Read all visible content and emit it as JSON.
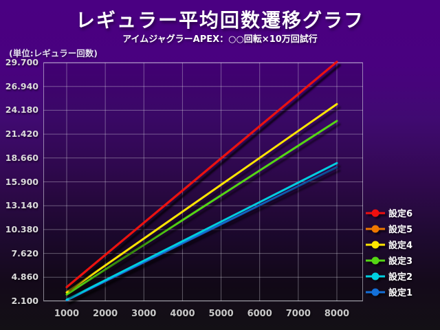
{
  "title": "レギュラー平均回数遷移グラフ",
  "subtitle": "アイムジャグラーAPEX：○○回転×10万回試行",
  "unit_label": "(単位:レギュラー回数)",
  "colors": {
    "background_top": "#4a0082",
    "background_bottom": "#131015",
    "grid": "rgba(225,225,235,0.38)",
    "plot_border": "rgba(235,235,245,0.55)",
    "text_primary": "#ffffff",
    "text_ticks": "#d0d0d0"
  },
  "chart_data": {
    "type": "line",
    "title": "レギュラー平均回数遷移グラフ",
    "subtitle": "アイムジャグラーAPEX：○○回転×10万回試行",
    "ylabel": "(単位:レギュラー回数)",
    "xlabel": "",
    "grid": true,
    "legend_position": "right",
    "x": [
      1000,
      2000,
      3000,
      4000,
      5000,
      6000,
      7000,
      8000
    ],
    "xticks": [
      "1000",
      "2000",
      "3000",
      "4000",
      "5000",
      "6000",
      "7000",
      "8000"
    ],
    "yticks": [
      "29.700",
      "26.940",
      "24.180",
      "21.420",
      "18.660",
      "15.900",
      "13.140",
      "10.380",
      "7.620",
      "4.860",
      "2.100"
    ],
    "ylim": [
      2.1,
      29.7
    ],
    "series": [
      {
        "name": "設定6",
        "color": "#ee0f0f",
        "values": [
          3.72,
          7.45,
          11.17,
          14.89,
          18.62,
          22.34,
          26.06,
          29.78
        ]
      },
      {
        "name": "設定5",
        "color": "#ee7700",
        "values": [
          3.72,
          7.45,
          11.17,
          14.89,
          18.62,
          22.34,
          26.06,
          29.78
        ]
      },
      {
        "name": "設定4",
        "color": "#ffe600",
        "values": [
          3.11,
          6.23,
          9.34,
          12.45,
          15.56,
          18.67,
          21.79,
          24.9
        ]
      },
      {
        "name": "設定3",
        "color": "#55d614",
        "values": [
          2.87,
          5.74,
          8.61,
          11.47,
          14.34,
          17.21,
          20.08,
          22.95
        ]
      },
      {
        "name": "設定2",
        "color": "#00cfe0",
        "values": [
          2.26,
          4.52,
          6.78,
          9.03,
          11.29,
          13.55,
          15.81,
          18.07
        ]
      },
      {
        "name": "設定1",
        "color": "#1470d8",
        "values": [
          2.2,
          4.4,
          6.59,
          8.79,
          10.99,
          13.18,
          15.38,
          17.58
        ]
      }
    ]
  }
}
